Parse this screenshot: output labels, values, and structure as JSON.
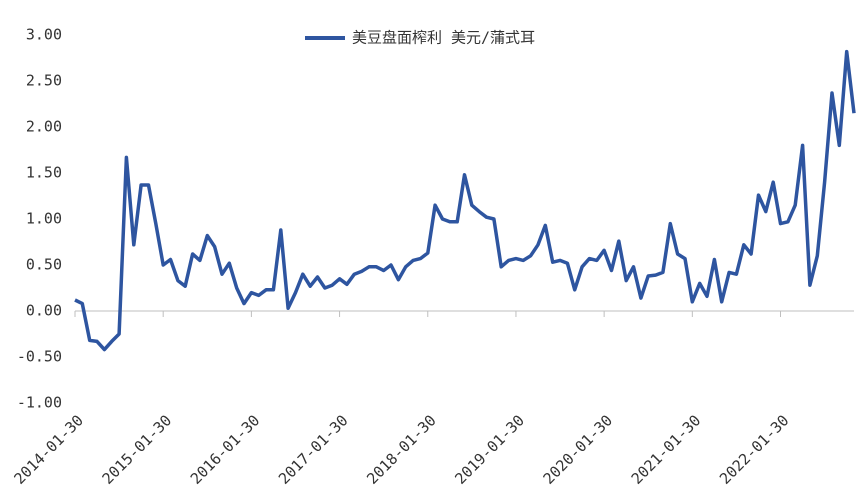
{
  "chart_data": {
    "type": "line",
    "series": [
      {
        "name": "美豆盘面榨利 美元/蒲式耳",
        "color": "#2e55a0",
        "values": [
          0.12,
          0.08,
          -0.32,
          -0.33,
          -0.42,
          -0.33,
          -0.25,
          1.67,
          0.72,
          1.37,
          1.37,
          0.95,
          0.5,
          0.56,
          0.33,
          0.27,
          0.62,
          0.55,
          0.82,
          0.7,
          0.4,
          0.52,
          0.25,
          0.08,
          0.2,
          0.17,
          0.23,
          0.23,
          0.88,
          0.03,
          0.2,
          0.4,
          0.27,
          0.37,
          0.25,
          0.28,
          0.35,
          0.29,
          0.4,
          0.43,
          0.48,
          0.48,
          0.44,
          0.5,
          0.34,
          0.48,
          0.55,
          0.57,
          0.63,
          1.15,
          1.0,
          0.97,
          0.97,
          1.48,
          1.15,
          1.08,
          1.02,
          1.0,
          0.48,
          0.55,
          0.57,
          0.55,
          0.6,
          0.72,
          0.93,
          0.53,
          0.55,
          0.52,
          0.23,
          0.48,
          0.57,
          0.55,
          0.66,
          0.44,
          0.76,
          0.33,
          0.48,
          0.14,
          0.38,
          0.39,
          0.42,
          0.95,
          0.62,
          0.57,
          0.1,
          0.3,
          0.16,
          0.56,
          0.1,
          0.42,
          0.4,
          0.72,
          0.62,
          1.26,
          1.08,
          1.4,
          0.95,
          0.97,
          1.15,
          1.8,
          0.28,
          0.6,
          1.4,
          2.37,
          1.8,
          2.82,
          2.15
        ]
      }
    ],
    "categories": [
      "2014-01-30",
      null,
      null,
      null,
      null,
      null,
      null,
      null,
      null,
      null,
      null,
      null,
      "2015-01-30",
      null,
      null,
      null,
      null,
      null,
      null,
      null,
      null,
      null,
      null,
      null,
      "2016-01-30",
      null,
      null,
      null,
      null,
      null,
      null,
      null,
      null,
      null,
      null,
      null,
      "2017-01-30",
      null,
      null,
      null,
      null,
      null,
      null,
      null,
      null,
      null,
      null,
      null,
      "2018-01-30",
      null,
      null,
      null,
      null,
      null,
      null,
      null,
      null,
      null,
      null,
      null,
      "2019-01-30",
      null,
      null,
      null,
      null,
      null,
      null,
      null,
      null,
      null,
      null,
      null,
      "2020-01-30",
      null,
      null,
      null,
      null,
      null,
      null,
      null,
      null,
      null,
      null,
      null,
      "2021-01-30",
      null,
      null,
      null,
      null,
      null,
      null,
      null,
      null,
      null,
      null,
      null,
      "2022-01-30",
      null,
      null,
      null,
      null,
      null,
      null,
      null,
      null,
      null,
      null
    ],
    "ylim": [
      -1.0,
      3.0
    ],
    "yticks": [
      {
        "value": 3.0,
        "label": "3.00"
      },
      {
        "value": 2.5,
        "label": "2.50"
      },
      {
        "value": 2.0,
        "label": "2.00"
      },
      {
        "value": 1.5,
        "label": "1.50"
      },
      {
        "value": 1.0,
        "label": "1.00"
      },
      {
        "value": 0.5,
        "label": "0.50"
      },
      {
        "value": 0.0,
        "label": "0.00"
      },
      {
        "value": -0.5,
        "label": "-0.50"
      },
      {
        "value": -1.0,
        "label": "-1.00"
      }
    ],
    "grid": false,
    "legend": "top"
  }
}
